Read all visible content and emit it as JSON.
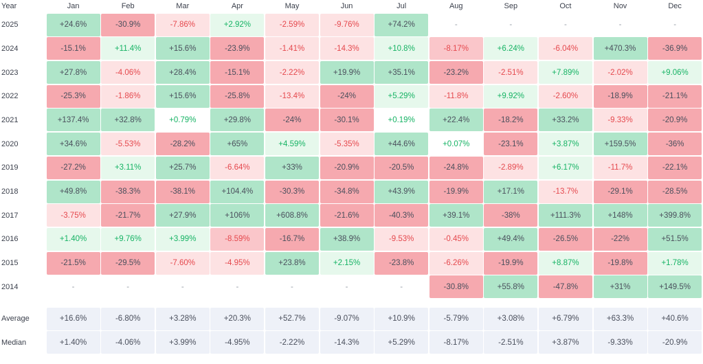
{
  "header": {
    "year_label": "Year",
    "months": [
      "Jan",
      "Feb",
      "Mar",
      "Apr",
      "May",
      "Jun",
      "Jul",
      "Aug",
      "Sep",
      "Oct",
      "Nov",
      "Dec"
    ]
  },
  "colors": {
    "strong_pos_bg": "#afe5c9",
    "mid_pos_bg": "#c7eed8",
    "light_pos_bg": "#e6f8ec",
    "strong_neg_bg": "#f6a9af",
    "mid_neg_bg": "#fac6ca",
    "light_neg_bg": "#fde2e3",
    "pos_text": "#16b364",
    "neg_text": "#e5484d",
    "dark_text": "#4a4f5c",
    "summary_bg": "#eef1f8"
  },
  "rows": [
    {
      "year": "2025",
      "cells": [
        {
          "v": "+24.6%",
          "t": "p3"
        },
        {
          "v": "-30.9%",
          "t": "n3"
        },
        {
          "v": "-7.86%",
          "t": "n1"
        },
        {
          "v": "+2.92%",
          "t": "p1"
        },
        {
          "v": "-2.59%",
          "t": "n1"
        },
        {
          "v": "-9.76%",
          "t": "n1"
        },
        {
          "v": "+74.2%",
          "t": "p3"
        },
        {
          "v": "-",
          "t": "e"
        },
        {
          "v": "-",
          "t": "e"
        },
        {
          "v": "-",
          "t": "e"
        },
        {
          "v": "-",
          "t": "e"
        },
        {
          "v": "-",
          "t": "e"
        }
      ]
    },
    {
      "year": "2024",
      "cells": [
        {
          "v": "-15.1%",
          "t": "n3"
        },
        {
          "v": "+11.4%",
          "t": "p1"
        },
        {
          "v": "+15.6%",
          "t": "p3"
        },
        {
          "v": "-23.9%",
          "t": "n3"
        },
        {
          "v": "-1.41%",
          "t": "n1"
        },
        {
          "v": "-14.3%",
          "t": "n1"
        },
        {
          "v": "+10.8%",
          "t": "p1"
        },
        {
          "v": "-8.17%",
          "t": "n2"
        },
        {
          "v": "+6.24%",
          "t": "p1"
        },
        {
          "v": "-6.04%",
          "t": "n1"
        },
        {
          "v": "+470.3%",
          "t": "p3"
        },
        {
          "v": "-36.9%",
          "t": "n3"
        }
      ]
    },
    {
      "year": "2023",
      "cells": [
        {
          "v": "+27.8%",
          "t": "p3"
        },
        {
          "v": "-4.06%",
          "t": "n1"
        },
        {
          "v": "+28.4%",
          "t": "p3"
        },
        {
          "v": "-15.1%",
          "t": "n3"
        },
        {
          "v": "-2.22%",
          "t": "n1"
        },
        {
          "v": "+19.9%",
          "t": "p3"
        },
        {
          "v": "+35.1%",
          "t": "p3"
        },
        {
          "v": "-23.2%",
          "t": "n3"
        },
        {
          "v": "-2.51%",
          "t": "n1"
        },
        {
          "v": "+7.89%",
          "t": "p1"
        },
        {
          "v": "-2.02%",
          "t": "n1"
        },
        {
          "v": "+9.06%",
          "t": "p1"
        }
      ]
    },
    {
      "year": "2022",
      "cells": [
        {
          "v": "-25.3%",
          "t": "n3"
        },
        {
          "v": "-1.86%",
          "t": "n1"
        },
        {
          "v": "+15.6%",
          "t": "p3"
        },
        {
          "v": "-25.8%",
          "t": "n3"
        },
        {
          "v": "-13.4%",
          "t": "n1"
        },
        {
          "v": "-24%",
          "t": "n3"
        },
        {
          "v": "+5.29%",
          "t": "p1"
        },
        {
          "v": "-11.8%",
          "t": "n1"
        },
        {
          "v": "+9.92%",
          "t": "p1"
        },
        {
          "v": "-2.60%",
          "t": "n1"
        },
        {
          "v": "-18.9%",
          "t": "n3"
        },
        {
          "v": "-21.1%",
          "t": "n3"
        }
      ]
    },
    {
      "year": "2021",
      "cells": [
        {
          "v": "+137.4%",
          "t": "p3"
        },
        {
          "v": "+32.8%",
          "t": "p3"
        },
        {
          "v": "+0.79%",
          "t": "p0"
        },
        {
          "v": "+29.8%",
          "t": "p3"
        },
        {
          "v": "-24%",
          "t": "n3"
        },
        {
          "v": "-30.1%",
          "t": "n3"
        },
        {
          "v": "+0.19%",
          "t": "p0"
        },
        {
          "v": "+22.4%",
          "t": "p3"
        },
        {
          "v": "-18.2%",
          "t": "n3"
        },
        {
          "v": "+33.2%",
          "t": "p3"
        },
        {
          "v": "-9.33%",
          "t": "n1"
        },
        {
          "v": "-20.9%",
          "t": "n3"
        }
      ]
    },
    {
      "year": "2020",
      "cells": [
        {
          "v": "+34.6%",
          "t": "p3"
        },
        {
          "v": "-5.53%",
          "t": "n1"
        },
        {
          "v": "-28.2%",
          "t": "n3"
        },
        {
          "v": "+65%",
          "t": "p3"
        },
        {
          "v": "+4.59%",
          "t": "p1"
        },
        {
          "v": "-5.35%",
          "t": "n1"
        },
        {
          "v": "+44.6%",
          "t": "p3"
        },
        {
          "v": "+0.07%",
          "t": "p0"
        },
        {
          "v": "-23.1%",
          "t": "n3"
        },
        {
          "v": "+3.87%",
          "t": "p1"
        },
        {
          "v": "+159.5%",
          "t": "p3"
        },
        {
          "v": "-36%",
          "t": "n3"
        }
      ]
    },
    {
      "year": "2019",
      "cells": [
        {
          "v": "-27.2%",
          "t": "n3"
        },
        {
          "v": "+3.11%",
          "t": "p1"
        },
        {
          "v": "+25.7%",
          "t": "p3"
        },
        {
          "v": "-6.64%",
          "t": "n1"
        },
        {
          "v": "+33%",
          "t": "p3"
        },
        {
          "v": "-20.9%",
          "t": "n3"
        },
        {
          "v": "-20.5%",
          "t": "n3"
        },
        {
          "v": "-24.8%",
          "t": "n3"
        },
        {
          "v": "-2.89%",
          "t": "n1"
        },
        {
          "v": "+6.17%",
          "t": "p1"
        },
        {
          "v": "-11.7%",
          "t": "n1"
        },
        {
          "v": "-22.1%",
          "t": "n3"
        }
      ]
    },
    {
      "year": "2018",
      "cells": [
        {
          "v": "+49.8%",
          "t": "p3"
        },
        {
          "v": "-38.3%",
          "t": "n3"
        },
        {
          "v": "-38.1%",
          "t": "n3"
        },
        {
          "v": "+104.4%",
          "t": "p3"
        },
        {
          "v": "-30.3%",
          "t": "n3"
        },
        {
          "v": "-34.8%",
          "t": "n3"
        },
        {
          "v": "+43.9%",
          "t": "p3"
        },
        {
          "v": "-19.9%",
          "t": "n3"
        },
        {
          "v": "+17.1%",
          "t": "p3"
        },
        {
          "v": "-13.7%",
          "t": "n1"
        },
        {
          "v": "-29.1%",
          "t": "n3"
        },
        {
          "v": "-28.5%",
          "t": "n3"
        }
      ]
    },
    {
      "year": "2017",
      "cells": [
        {
          "v": "-3.75%",
          "t": "n1"
        },
        {
          "v": "-21.7%",
          "t": "n3"
        },
        {
          "v": "+27.9%",
          "t": "p3"
        },
        {
          "v": "+106%",
          "t": "p3"
        },
        {
          "v": "+608.8%",
          "t": "p3"
        },
        {
          "v": "-21.6%",
          "t": "n3"
        },
        {
          "v": "-40.3%",
          "t": "n3"
        },
        {
          "v": "+39.1%",
          "t": "p3"
        },
        {
          "v": "-38%",
          "t": "n3"
        },
        {
          "v": "+111.3%",
          "t": "p3"
        },
        {
          "v": "+148%",
          "t": "p3"
        },
        {
          "v": "+399.8%",
          "t": "p3"
        }
      ]
    },
    {
      "year": "2016",
      "cells": [
        {
          "v": "+1.40%",
          "t": "p1"
        },
        {
          "v": "+9.76%",
          "t": "p1"
        },
        {
          "v": "+3.99%",
          "t": "p1"
        },
        {
          "v": "-8.59%",
          "t": "n2"
        },
        {
          "v": "-16.7%",
          "t": "n3"
        },
        {
          "v": "+38.9%",
          "t": "p3"
        },
        {
          "v": "-9.53%",
          "t": "n1"
        },
        {
          "v": "-0.45%",
          "t": "n1"
        },
        {
          "v": "+49.4%",
          "t": "p3"
        },
        {
          "v": "-26.5%",
          "t": "n3"
        },
        {
          "v": "-22%",
          "t": "n3"
        },
        {
          "v": "+51.5%",
          "t": "p3"
        }
      ]
    },
    {
      "year": "2015",
      "cells": [
        {
          "v": "-21.5%",
          "t": "n3"
        },
        {
          "v": "-29.5%",
          "t": "n3"
        },
        {
          "v": "-7.60%",
          "t": "n1"
        },
        {
          "v": "-4.95%",
          "t": "n1"
        },
        {
          "v": "+23.8%",
          "t": "p3"
        },
        {
          "v": "+2.15%",
          "t": "p1"
        },
        {
          "v": "-23.8%",
          "t": "n3"
        },
        {
          "v": "-6.26%",
          "t": "n1"
        },
        {
          "v": "-19.9%",
          "t": "n3"
        },
        {
          "v": "+8.87%",
          "t": "p1"
        },
        {
          "v": "-19.8%",
          "t": "n3"
        },
        {
          "v": "+1.78%",
          "t": "p1"
        }
      ]
    },
    {
      "year": "2014",
      "cells": [
        {
          "v": "-",
          "t": "e"
        },
        {
          "v": "-",
          "t": "e"
        },
        {
          "v": "-",
          "t": "e"
        },
        {
          "v": "-",
          "t": "e"
        },
        {
          "v": "-",
          "t": "e"
        },
        {
          "v": "-",
          "t": "e"
        },
        {
          "v": "-",
          "t": "e"
        },
        {
          "v": "-30.8%",
          "t": "n3"
        },
        {
          "v": "+55.8%",
          "t": "p3"
        },
        {
          "v": "-47.8%",
          "t": "n3"
        },
        {
          "v": "+31%",
          "t": "p3"
        },
        {
          "v": "+149.5%",
          "t": "p3"
        }
      ]
    }
  ],
  "summary": [
    {
      "label": "Average",
      "values": [
        "+16.6%",
        "-6.80%",
        "+3.28%",
        "+20.3%",
        "+52.7%",
        "-9.07%",
        "+10.9%",
        "-5.79%",
        "+3.08%",
        "+6.79%",
        "+63.3%",
        "+40.6%"
      ]
    },
    {
      "label": "Median",
      "values": [
        "+1.40%",
        "-4.06%",
        "+3.99%",
        "-4.95%",
        "-2.22%",
        "-14.3%",
        "+5.29%",
        "-8.17%",
        "-2.51%",
        "+3.87%",
        "-9.33%",
        "-20.9%"
      ]
    }
  ]
}
